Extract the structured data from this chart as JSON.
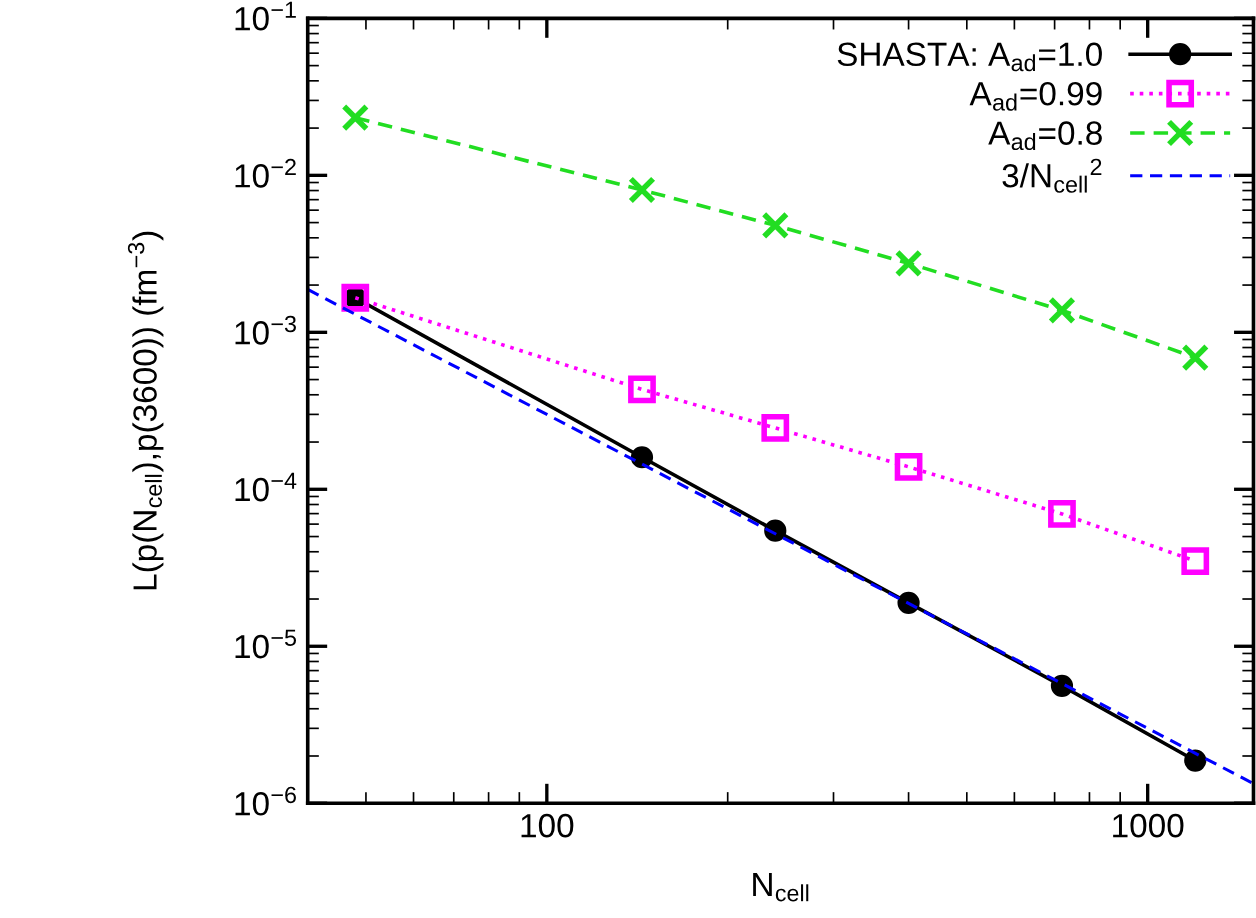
{
  "chart_data": {
    "type": "line",
    "xlabel": "N$_{cell}$",
    "ylabel": "L(p(N$_{cell}$),p(3600)) (fm$^{−3}$)",
    "x": [
      48,
      144,
      240,
      400,
      720,
      1200
    ],
    "series": [
      {
        "name": "SHASTA: A$_{ad}$=1.0",
        "color": "#000000",
        "marker": "circle",
        "line_style": "solid",
        "values": [
          0.00166,
          0.00016,
          5.45e-05,
          1.89e-05,
          5.6e-06,
          1.87e-06
        ]
      },
      {
        "name": "A$_{ad}$=0.99",
        "color": "#ff00ff",
        "marker": "square",
        "line_style": "dotted",
        "values": [
          0.00166,
          0.000433,
          0.000246,
          0.000139,
          6.97e-05,
          3.49e-05
        ]
      },
      {
        "name": "A$_{ad}$=0.8",
        "color": "#22dd22",
        "marker": "cross",
        "line_style": "dashed",
        "values": [
          0.0233,
          0.00807,
          0.0048,
          0.00275,
          0.00138,
          0.00069
        ]
      },
      {
        "name": "3/N$_{cell}$$^{2}$",
        "color": "#0000ff",
        "marker": "none",
        "line_style": "dashed",
        "x": [
          40,
          1500
        ],
        "values": [
          0.001875,
          1.333e-06
        ]
      }
    ],
    "log": "xy",
    "xlim": [
      40,
      1500
    ],
    "ylim": [
      1e-06,
      0.1
    ],
    "xticks": [
      100,
      1000
    ],
    "yticks": [
      {
        "value": 1e-06,
        "label": "10$^{−6}$"
      },
      {
        "value": 1e-05,
        "label": "10$^{−5}$"
      },
      {
        "value": 0.0001,
        "label": "10$^{−4}$"
      },
      {
        "value": 0.001,
        "label": "10$^{−3}$"
      },
      {
        "value": 0.01,
        "label": "10$^{−2}$"
      },
      {
        "value": 0.1,
        "label": "10$^{−1}$"
      }
    ],
    "legend": "top right",
    "grid": false
  }
}
